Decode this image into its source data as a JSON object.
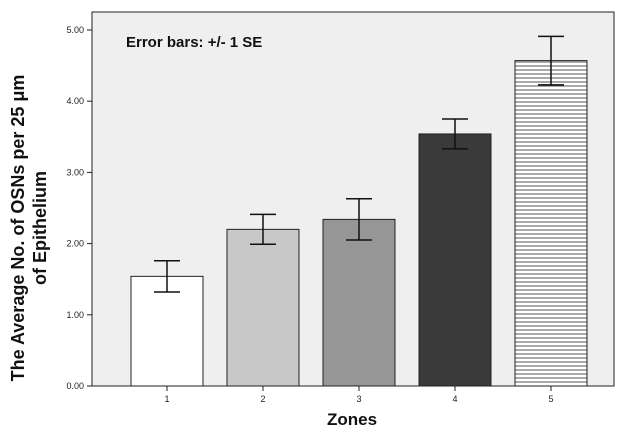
{
  "chart_data": {
    "type": "bar",
    "annotation": "Error bars: +/- 1 SE",
    "xlabel": "Zones",
    "ylabel_line1": "The Average No. of OSNs per 25 μm",
    "ylabel_line2": "of Epithelium",
    "categories": [
      "1",
      "2",
      "3",
      "4",
      "5"
    ],
    "values": [
      1.54,
      2.2,
      2.34,
      3.54,
      4.57
    ],
    "errors": [
      0.22,
      0.21,
      0.29,
      0.21,
      0.34
    ],
    "ylim": [
      0,
      5
    ],
    "yticks": [
      "0.00",
      "1.00",
      "2.00",
      "3.00",
      "4.00",
      "5.00"
    ],
    "bar_fills": [
      "#ffffff",
      "#c8c8c8",
      "#969696",
      "#3a3a3a",
      "hatch"
    ],
    "plot_background": "#efefef",
    "grid": false
  }
}
